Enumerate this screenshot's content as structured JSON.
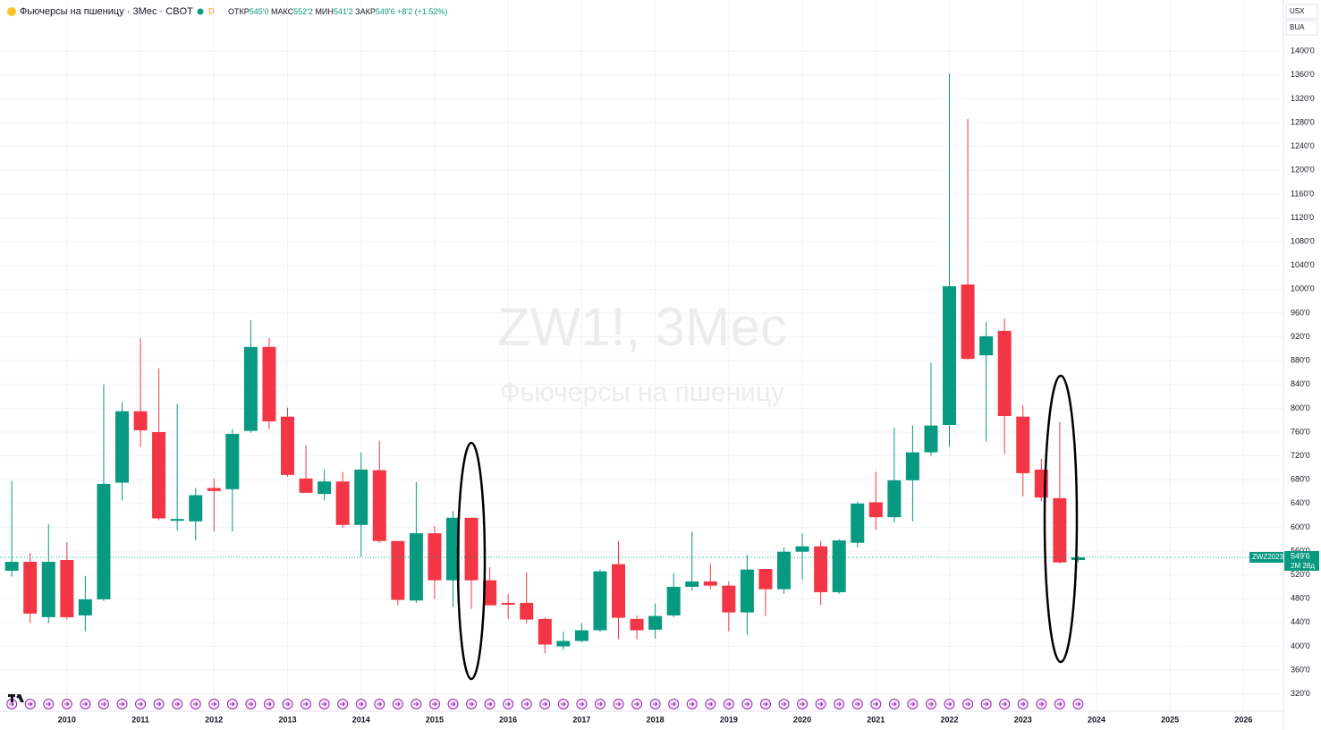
{
  "chart_data": {
    "type": "candlestick",
    "title": "Фьючерсы на пшеницу · 3Мес · CBOT",
    "interval_badge": "D",
    "ohlc_legend": {
      "open_label": "ОТКР",
      "open": "545'0",
      "high_label": "МАКС",
      "high": "552'2",
      "low_label": "МИН",
      "low": "541'2",
      "close_label": "ЗАКР",
      "close": "549'6",
      "change": "+8'2 (+1.52%)"
    },
    "watermark": {
      "symbol": "ZW1!, 3Мес",
      "name": "Фьючерсы на пшеницу"
    },
    "currency": "USX",
    "unit": "BUA",
    "up_color": "#089981",
    "down_color": "#f23645",
    "x": [
      2009.25,
      2009.5,
      2009.75,
      2010,
      2010.25,
      2010.5,
      2010.75,
      2011,
      2011.25,
      2011.5,
      2011.75,
      2012,
      2012.25,
      2012.5,
      2012.75,
      2013,
      2013.25,
      2013.5,
      2013.75,
      2014,
      2014.25,
      2014.5,
      2014.75,
      2015,
      2015.25,
      2015.5,
      2015.75,
      2016,
      2016.25,
      2016.5,
      2016.75,
      2017,
      2017.25,
      2017.5,
      2017.75,
      2018,
      2018.25,
      2018.5,
      2018.75,
      2019,
      2019.25,
      2019.5,
      2019.75,
      2020,
      2020.25,
      2020.5,
      2020.75,
      2021,
      2021.25,
      2021.5,
      2021.75,
      2022,
      2022.25,
      2022.5,
      2022.75,
      2023,
      2023.25,
      2023.5,
      2023.75
    ],
    "open": [
      527,
      542,
      449,
      545,
      452,
      479,
      675,
      795,
      760,
      611,
      610,
      666,
      664,
      762,
      903,
      786,
      682,
      656,
      677,
      604,
      696,
      577,
      477,
      590,
      511,
      616,
      511,
      473,
      473,
      446,
      400,
      409,
      427,
      538,
      446,
      428,
      452,
      500,
      509,
      502,
      457,
      530,
      496,
      559,
      568,
      491,
      574,
      642,
      617,
      679,
      726,
      772,
      1008,
      889,
      930,
      786,
      697,
      649,
      545
    ],
    "high": [
      678,
      557,
      605,
      575,
      518,
      840,
      810,
      918,
      867,
      807,
      666,
      682,
      765,
      948,
      918,
      801,
      738,
      697,
      693,
      726,
      745,
      577,
      676,
      602,
      627,
      616,
      533,
      488,
      524,
      449,
      425,
      439,
      529,
      577,
      452,
      472,
      523,
      593,
      539,
      509,
      554,
      530,
      566,
      590,
      577,
      580,
      643,
      693,
      768,
      771,
      877,
      1362,
      1286,
      945,
      951,
      805,
      715,
      777,
      552.2
    ],
    "low": [
      517,
      439,
      439,
      445,
      425,
      476,
      645,
      735,
      612,
      595,
      578,
      593,
      593,
      759,
      765,
      685,
      658,
      645,
      599,
      551,
      574,
      469,
      473,
      479,
      466,
      463,
      469,
      446,
      439,
      388,
      394,
      407,
      424,
      412,
      412,
      413,
      449,
      494,
      496,
      425,
      419,
      451,
      488,
      512,
      470,
      488,
      566,
      596,
      608,
      610,
      720,
      735,
      882,
      744,
      723,
      652,
      644,
      539,
      541.2
    ],
    "close": [
      542,
      455,
      542,
      449,
      479,
      673,
      795,
      763,
      615,
      614,
      654,
      661,
      757,
      903,
      778,
      688,
      658,
      677,
      604,
      697,
      577,
      478,
      590,
      511,
      616,
      511,
      469,
      470,
      445,
      403,
      409,
      427,
      526,
      448,
      427,
      451,
      500,
      509,
      502,
      457,
      529,
      496,
      559,
      568,
      491,
      578,
      640,
      617,
      679,
      726,
      771,
      1005,
      883,
      921,
      787,
      691,
      650,
      541,
      549.6
    ],
    "xlim": [
      2009.09,
      2026.53
    ],
    "xticks": [
      2010,
      2011,
      2012,
      2013,
      2014,
      2015,
      2016,
      2017,
      2018,
      2019,
      2020,
      2021,
      2022,
      2023,
      2024,
      2025,
      2026
    ],
    "ylim": [
      291,
      1486
    ],
    "yticks": [
      {
        "value": 320,
        "label": "320'0"
      },
      {
        "value": 360,
        "label": "360'0"
      },
      {
        "value": 400,
        "label": "400'0"
      },
      {
        "value": 440,
        "label": "440'0"
      },
      {
        "value": 480,
        "label": "480'0"
      },
      {
        "value": 520,
        "label": "520'0"
      },
      {
        "value": 560,
        "label": "560'0"
      },
      {
        "value": 600,
        "label": "600'0"
      },
      {
        "value": 640,
        "label": "640'0"
      },
      {
        "value": 680,
        "label": "680'0"
      },
      {
        "value": 720,
        "label": "720'0"
      },
      {
        "value": 760,
        "label": "760'0"
      },
      {
        "value": 800,
        "label": "800'0"
      },
      {
        "value": 840,
        "label": "840'0"
      },
      {
        "value": 880,
        "label": "880'0"
      },
      {
        "value": 920,
        "label": "920'0"
      },
      {
        "value": 960,
        "label": "960'0"
      },
      {
        "value": 1000,
        "label": "1000'0"
      },
      {
        "value": 1040,
        "label": "1040'0"
      },
      {
        "value": 1080,
        "label": "1080'0"
      },
      {
        "value": 1120,
        "label": "1120'0"
      },
      {
        "value": 1160,
        "label": "1160'0"
      },
      {
        "value": 1200,
        "label": "1200'0"
      },
      {
        "value": 1240,
        "label": "1240'0"
      },
      {
        "value": 1280,
        "label": "1280'0"
      },
      {
        "value": 1320,
        "label": "1320'0"
      },
      {
        "value": 1360,
        "label": "1360'0"
      },
      {
        "value": 1400,
        "label": "1400'0"
      }
    ],
    "grid": true,
    "last_price": {
      "symbol": "ZWZ2023",
      "value": 549.6,
      "label": "549'6",
      "countdown": "2М 28д"
    }
  }
}
